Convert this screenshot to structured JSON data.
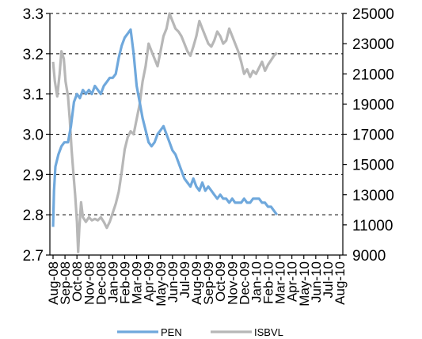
{
  "chart_data": {
    "type": "line",
    "title": "",
    "xlabel": "",
    "y_left": {
      "min": 2.7,
      "max": 3.3,
      "ticks": [
        "2.7",
        "2.8",
        "2.9",
        "3.0",
        "3.1",
        "3.2",
        "3.3"
      ]
    },
    "y_right": {
      "min": 9000,
      "max": 25000,
      "ticks": [
        "9000",
        "11000",
        "13000",
        "15000",
        "17000",
        "19000",
        "21000",
        "23000",
        "25000"
      ]
    },
    "grid": "horizontal dashed",
    "legend_position": "bottom",
    "x_ticks": [
      "Aug-08",
      "Sep-08",
      "Oct-08",
      "Nov-08",
      "Dec-08",
      "Jan-09",
      "Feb-09",
      "Mar-09",
      "Apr-09",
      "May-09",
      "Jun-09",
      "Jul-09",
      "Aug-09",
      "Sep-09",
      "Oct-09",
      "Nov-09",
      "Dec-09",
      "Jan-10",
      "Feb-10",
      "Mar-10",
      "Apr-10",
      "May-10",
      "Jun-10",
      "Jul-10",
      "Aug-10"
    ],
    "series": [
      {
        "name": "PEN",
        "axis": "left",
        "color": "#6fa8dc",
        "values": [
          [
            0,
            2.77
          ],
          [
            0.08,
            2.86
          ],
          [
            0.2,
            2.92
          ],
          [
            0.45,
            2.95
          ],
          [
            0.7,
            2.97
          ],
          [
            0.95,
            2.98
          ],
          [
            1.25,
            2.98
          ],
          [
            1.5,
            3.02
          ],
          [
            1.75,
            3.08
          ],
          [
            2.0,
            3.1
          ],
          [
            2.25,
            3.09
          ],
          [
            2.5,
            3.11
          ],
          [
            2.75,
            3.1
          ],
          [
            3.0,
            3.11
          ],
          [
            3.25,
            3.1
          ],
          [
            3.5,
            3.12
          ],
          [
            3.75,
            3.11
          ],
          [
            4.0,
            3.1
          ],
          [
            4.25,
            3.12
          ],
          [
            4.5,
            3.13
          ],
          [
            4.75,
            3.14
          ],
          [
            5.0,
            3.14
          ],
          [
            5.25,
            3.15
          ],
          [
            5.5,
            3.19
          ],
          [
            5.75,
            3.22
          ],
          [
            6.0,
            3.24
          ],
          [
            6.25,
            3.25
          ],
          [
            6.5,
            3.26
          ],
          [
            6.75,
            3.2
          ],
          [
            7.0,
            3.12
          ],
          [
            7.25,
            3.08
          ],
          [
            7.5,
            3.04
          ],
          [
            7.75,
            3.01
          ],
          [
            8.0,
            2.98
          ],
          [
            8.25,
            2.97
          ],
          [
            8.5,
            2.98
          ],
          [
            8.75,
            3.0
          ],
          [
            9.0,
            3.01
          ],
          [
            9.25,
            3.02
          ],
          [
            9.5,
            3.0
          ],
          [
            9.75,
            2.98
          ],
          [
            10.0,
            2.96
          ],
          [
            10.25,
            2.95
          ],
          [
            10.5,
            2.93
          ],
          [
            10.75,
            2.91
          ],
          [
            11.0,
            2.89
          ],
          [
            11.25,
            2.88
          ],
          [
            11.5,
            2.87
          ],
          [
            11.75,
            2.89
          ],
          [
            12.0,
            2.87
          ],
          [
            12.25,
            2.86
          ],
          [
            12.5,
            2.88
          ],
          [
            12.75,
            2.86
          ],
          [
            13.0,
            2.87
          ],
          [
            13.25,
            2.86
          ],
          [
            13.5,
            2.85
          ],
          [
            13.75,
            2.84
          ],
          [
            14.0,
            2.85
          ],
          [
            14.25,
            2.84
          ],
          [
            14.5,
            2.84
          ],
          [
            14.75,
            2.83
          ],
          [
            15.0,
            2.84
          ],
          [
            15.25,
            2.83
          ],
          [
            15.5,
            2.83
          ],
          [
            15.75,
            2.83
          ],
          [
            16.0,
            2.84
          ],
          [
            16.25,
            2.83
          ],
          [
            16.5,
            2.83
          ],
          [
            16.75,
            2.84
          ],
          [
            17.0,
            2.84
          ],
          [
            17.25,
            2.84
          ],
          [
            17.5,
            2.83
          ],
          [
            17.75,
            2.83
          ],
          [
            18.0,
            2.82
          ],
          [
            18.25,
            2.82
          ],
          [
            18.5,
            2.81
          ],
          [
            18.75,
            2.8
          ]
        ]
      },
      {
        "name": "ISBVL",
        "axis": "right",
        "color": "#b7b7b7",
        "values": [
          [
            0,
            21800
          ],
          [
            0.15,
            20500
          ],
          [
            0.35,
            19500
          ],
          [
            0.55,
            21000
          ],
          [
            0.7,
            22500
          ],
          [
            0.9,
            22000
          ],
          [
            1.05,
            20500
          ],
          [
            1.25,
            19500
          ],
          [
            1.4,
            18000
          ],
          [
            1.55,
            16000
          ],
          [
            1.7,
            14500
          ],
          [
            1.85,
            13000
          ],
          [
            2.0,
            11200
          ],
          [
            2.1,
            9200
          ],
          [
            2.2,
            10800
          ],
          [
            2.35,
            12500
          ],
          [
            2.5,
            11500
          ],
          [
            2.75,
            11200
          ],
          [
            3.0,
            11500
          ],
          [
            3.25,
            11300
          ],
          [
            3.5,
            11400
          ],
          [
            3.75,
            11300
          ],
          [
            4.0,
            11500
          ],
          [
            4.25,
            11200
          ],
          [
            4.5,
            10800
          ],
          [
            4.75,
            11200
          ],
          [
            5.0,
            11800
          ],
          [
            5.25,
            12400
          ],
          [
            5.5,
            13200
          ],
          [
            5.75,
            14500
          ],
          [
            6.0,
            16000
          ],
          [
            6.25,
            16800
          ],
          [
            6.5,
            17200
          ],
          [
            6.75,
            17000
          ],
          [
            7.0,
            18000
          ],
          [
            7.25,
            19000
          ],
          [
            7.5,
            20500
          ],
          [
            7.75,
            21500
          ],
          [
            8.0,
            23000
          ],
          [
            8.25,
            22500
          ],
          [
            8.5,
            22000
          ],
          [
            8.75,
            21500
          ],
          [
            9.0,
            22500
          ],
          [
            9.25,
            23500
          ],
          [
            9.5,
            24000
          ],
          [
            9.75,
            25000
          ],
          [
            10.0,
            24500
          ],
          [
            10.25,
            24000
          ],
          [
            10.5,
            23800
          ],
          [
            10.75,
            23500
          ],
          [
            11.0,
            23000
          ],
          [
            11.25,
            22500
          ],
          [
            11.5,
            22200
          ],
          [
            11.75,
            22800
          ],
          [
            12.0,
            23500
          ],
          [
            12.25,
            24500
          ],
          [
            12.5,
            24000
          ],
          [
            12.75,
            23500
          ],
          [
            13.0,
            23000
          ],
          [
            13.25,
            22800
          ],
          [
            13.5,
            23200
          ],
          [
            13.75,
            23800
          ],
          [
            14.0,
            23500
          ],
          [
            14.25,
            23000
          ],
          [
            14.5,
            23200
          ],
          [
            14.75,
            24000
          ],
          [
            15.0,
            23500
          ],
          [
            15.25,
            23000
          ],
          [
            15.5,
            22500
          ],
          [
            15.75,
            21800
          ],
          [
            16.0,
            21000
          ],
          [
            16.25,
            21300
          ],
          [
            16.5,
            20800
          ],
          [
            16.75,
            21200
          ],
          [
            17.0,
            21000
          ],
          [
            17.25,
            21400
          ],
          [
            17.5,
            21800
          ],
          [
            17.75,
            21200
          ],
          [
            18.0,
            21600
          ],
          [
            18.25,
            21900
          ],
          [
            18.5,
            22200
          ],
          [
            18.75,
            22400
          ]
        ]
      }
    ]
  }
}
